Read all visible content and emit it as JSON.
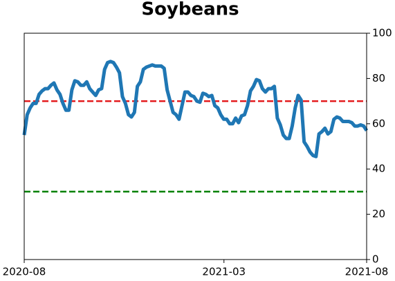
{
  "chart_data": {
    "type": "line",
    "title": "Soybeans",
    "xlim": [
      "2020-08",
      "2021-08"
    ],
    "xticks": [
      "2020-08",
      "2021-03",
      "2021-08"
    ],
    "ylim": [
      0,
      100
    ],
    "yticks": [
      0,
      20,
      40,
      60,
      80,
      100
    ],
    "y_axis_side": "right",
    "series": [
      {
        "color": "#1f77b4",
        "values": [
          55,
          64,
          67,
          69,
          69,
          73,
          74.5,
          75.5,
          75.5,
          77,
          78,
          75,
          73,
          69,
          66,
          66,
          75,
          79,
          78.5,
          77,
          77,
          78.5,
          75.5,
          74,
          72.5,
          75,
          75.5,
          84,
          87,
          87.5,
          87,
          85,
          82.5,
          72,
          69,
          64,
          63,
          65,
          76.5,
          78.5,
          84,
          85,
          85.5,
          86,
          85.5,
          85.5,
          85.5,
          84.5,
          75,
          70,
          65,
          64,
          62,
          68,
          74,
          74,
          72.5,
          72,
          70,
          69.5,
          73.5,
          73,
          72,
          72.5,
          68,
          67,
          64,
          62,
          62,
          60,
          60,
          62.5,
          60.5,
          63.5,
          64,
          68,
          74.5,
          76.5,
          79.5,
          79,
          75.5,
          74,
          75.5,
          75.5,
          76.5,
          62.5,
          59.5,
          55,
          53.5,
          53.5,
          59,
          67,
          72.5,
          70.5,
          52,
          50,
          47.5,
          46,
          45.5,
          55.5,
          56.5,
          58,
          55.5,
          56.5,
          62,
          63,
          62.5,
          61,
          61,
          61,
          60.5,
          59,
          59,
          59.5,
          59,
          57
        ]
      }
    ],
    "reference_lines": [
      {
        "value": 70,
        "color": "#e41a1c"
      },
      {
        "value": 30,
        "color": "#008000"
      }
    ]
  }
}
